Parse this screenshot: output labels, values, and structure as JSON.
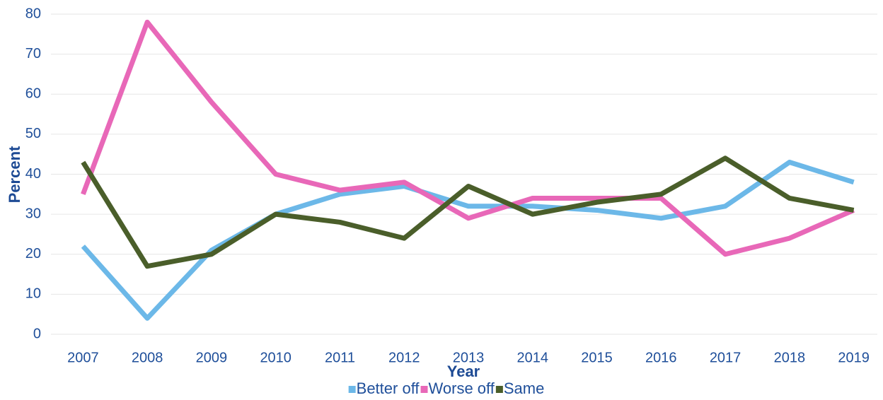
{
  "chart_data": {
    "type": "line",
    "x_label": "Year",
    "y_label": "Percent",
    "categories": [
      "2007",
      "2008",
      "2009",
      "2010",
      "2011",
      "2012",
      "2013",
      "2014",
      "2015",
      "2016",
      "2017",
      "2018",
      "2019"
    ],
    "series": [
      {
        "name": "Better off",
        "color": "#6cb8e8",
        "values": [
          22,
          4,
          21,
          30,
          35,
          37,
          32,
          32,
          31,
          29,
          32,
          43,
          38
        ]
      },
      {
        "name": "Worse off",
        "color": "#e868b8",
        "values": [
          35,
          78,
          58,
          40,
          36,
          38,
          29,
          34,
          34,
          34,
          20,
          24,
          31
        ]
      },
      {
        "name": "Same",
        "color": "#4a5e2a",
        "values": [
          43,
          17,
          20,
          30,
          28,
          24,
          37,
          30,
          33,
          35,
          44,
          34,
          31
        ]
      }
    ],
    "ylim": [
      0,
      80
    ],
    "yticks": [
      0,
      10,
      20,
      30,
      40,
      50,
      60,
      70,
      80
    ],
    "grid": true,
    "legend": "bottom"
  }
}
